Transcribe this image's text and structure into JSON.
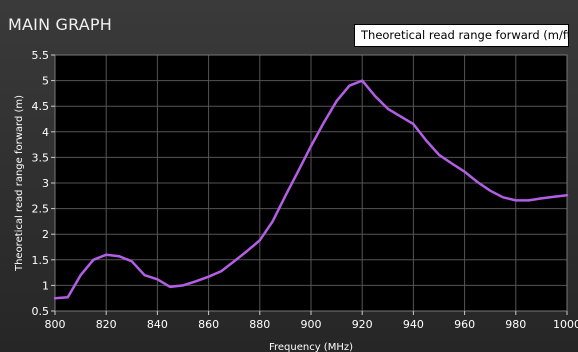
{
  "window": {
    "title": "MAIN GRAPH"
  },
  "controls": {
    "unit_button_label": "Theoretical read range forward (m/ft)"
  },
  "colors": {
    "plot_background": "#000000",
    "series_line": "#b35ee6",
    "grid": "#555555"
  },
  "chart_data": {
    "type": "line",
    "title": "MAIN GRAPH",
    "xlabel": "Frequency (MHz)",
    "ylabel": "Theoretical read range forward (m)",
    "xlim": [
      800,
      1000
    ],
    "ylim": [
      0.5,
      5.5
    ],
    "x_ticks": [
      800,
      820,
      840,
      860,
      880,
      900,
      920,
      940,
      960,
      980,
      1000
    ],
    "y_ticks": [
      0.5,
      1,
      1.5,
      2,
      2.5,
      3,
      3.5,
      4,
      4.5,
      5,
      5.5
    ],
    "y_tick_labels": [
      "0.5",
      "1",
      "1.5",
      "2",
      "2.5",
      "3",
      "3.5",
      "4",
      "4.5",
      "5",
      "5.5"
    ],
    "grid": true,
    "legend": "none",
    "series": [
      {
        "x": [
          800,
          805,
          810,
          815,
          820,
          825,
          830,
          835,
          840,
          845,
          850,
          855,
          860,
          865,
          870,
          875,
          880,
          885,
          890,
          895,
          900,
          905,
          910,
          915,
          920,
          925,
          930,
          935,
          940,
          945,
          950,
          955,
          960,
          965,
          970,
          975,
          980,
          985,
          990,
          995,
          1000
        ],
        "values": [
          0.75,
          0.77,
          1.2,
          1.5,
          1.6,
          1.57,
          1.47,
          1.2,
          1.12,
          0.97,
          1.0,
          1.08,
          1.17,
          1.28,
          1.47,
          1.67,
          1.88,
          2.25,
          2.75,
          3.23,
          3.72,
          4.18,
          4.6,
          4.9,
          5.0,
          4.7,
          4.45,
          4.3,
          4.15,
          3.83,
          3.55,
          3.38,
          3.22,
          3.02,
          2.85,
          2.72,
          2.66,
          2.66,
          2.7,
          2.73,
          2.76
        ]
      }
    ]
  }
}
